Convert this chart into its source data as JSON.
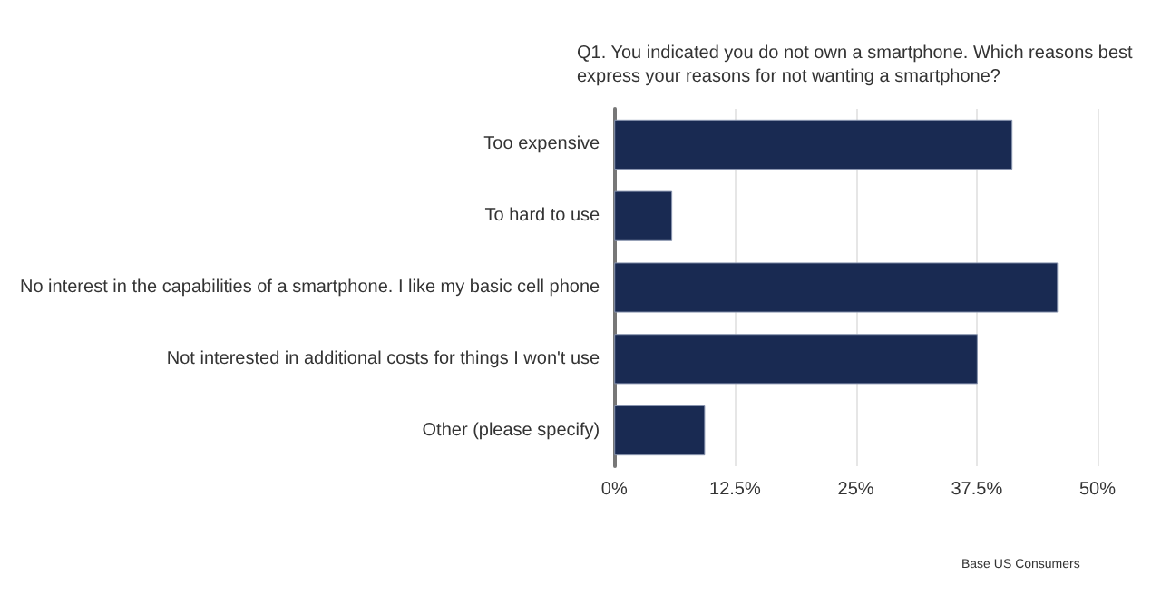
{
  "chart_data": {
    "type": "bar",
    "orientation": "horizontal",
    "title": "Q1. You indicated you do not own a smartphone. Which reasons best express your reasons for not wanting a smartphone?",
    "categories": [
      "Too expensive",
      "To hard to use",
      "No interest in the capabilities of a smartphone. I like my basic cell phone",
      "Not interested in additional costs for things I won't use",
      "Other (please specify)"
    ],
    "values": [
      41.2,
      6.0,
      45.9,
      37.6,
      9.4
    ],
    "color": "#192a52",
    "xlim": [
      0,
      50
    ],
    "xticks": [
      {
        "value": 0,
        "label": "0%"
      },
      {
        "value": 12.5,
        "label": "12.5%"
      },
      {
        "value": 25,
        "label": "25%"
      },
      {
        "value": 37.5,
        "label": "37.5%"
      },
      {
        "value": 50,
        "label": "50%"
      }
    ],
    "grid": "x",
    "annotations": [
      "Base US Consumers"
    ]
  }
}
